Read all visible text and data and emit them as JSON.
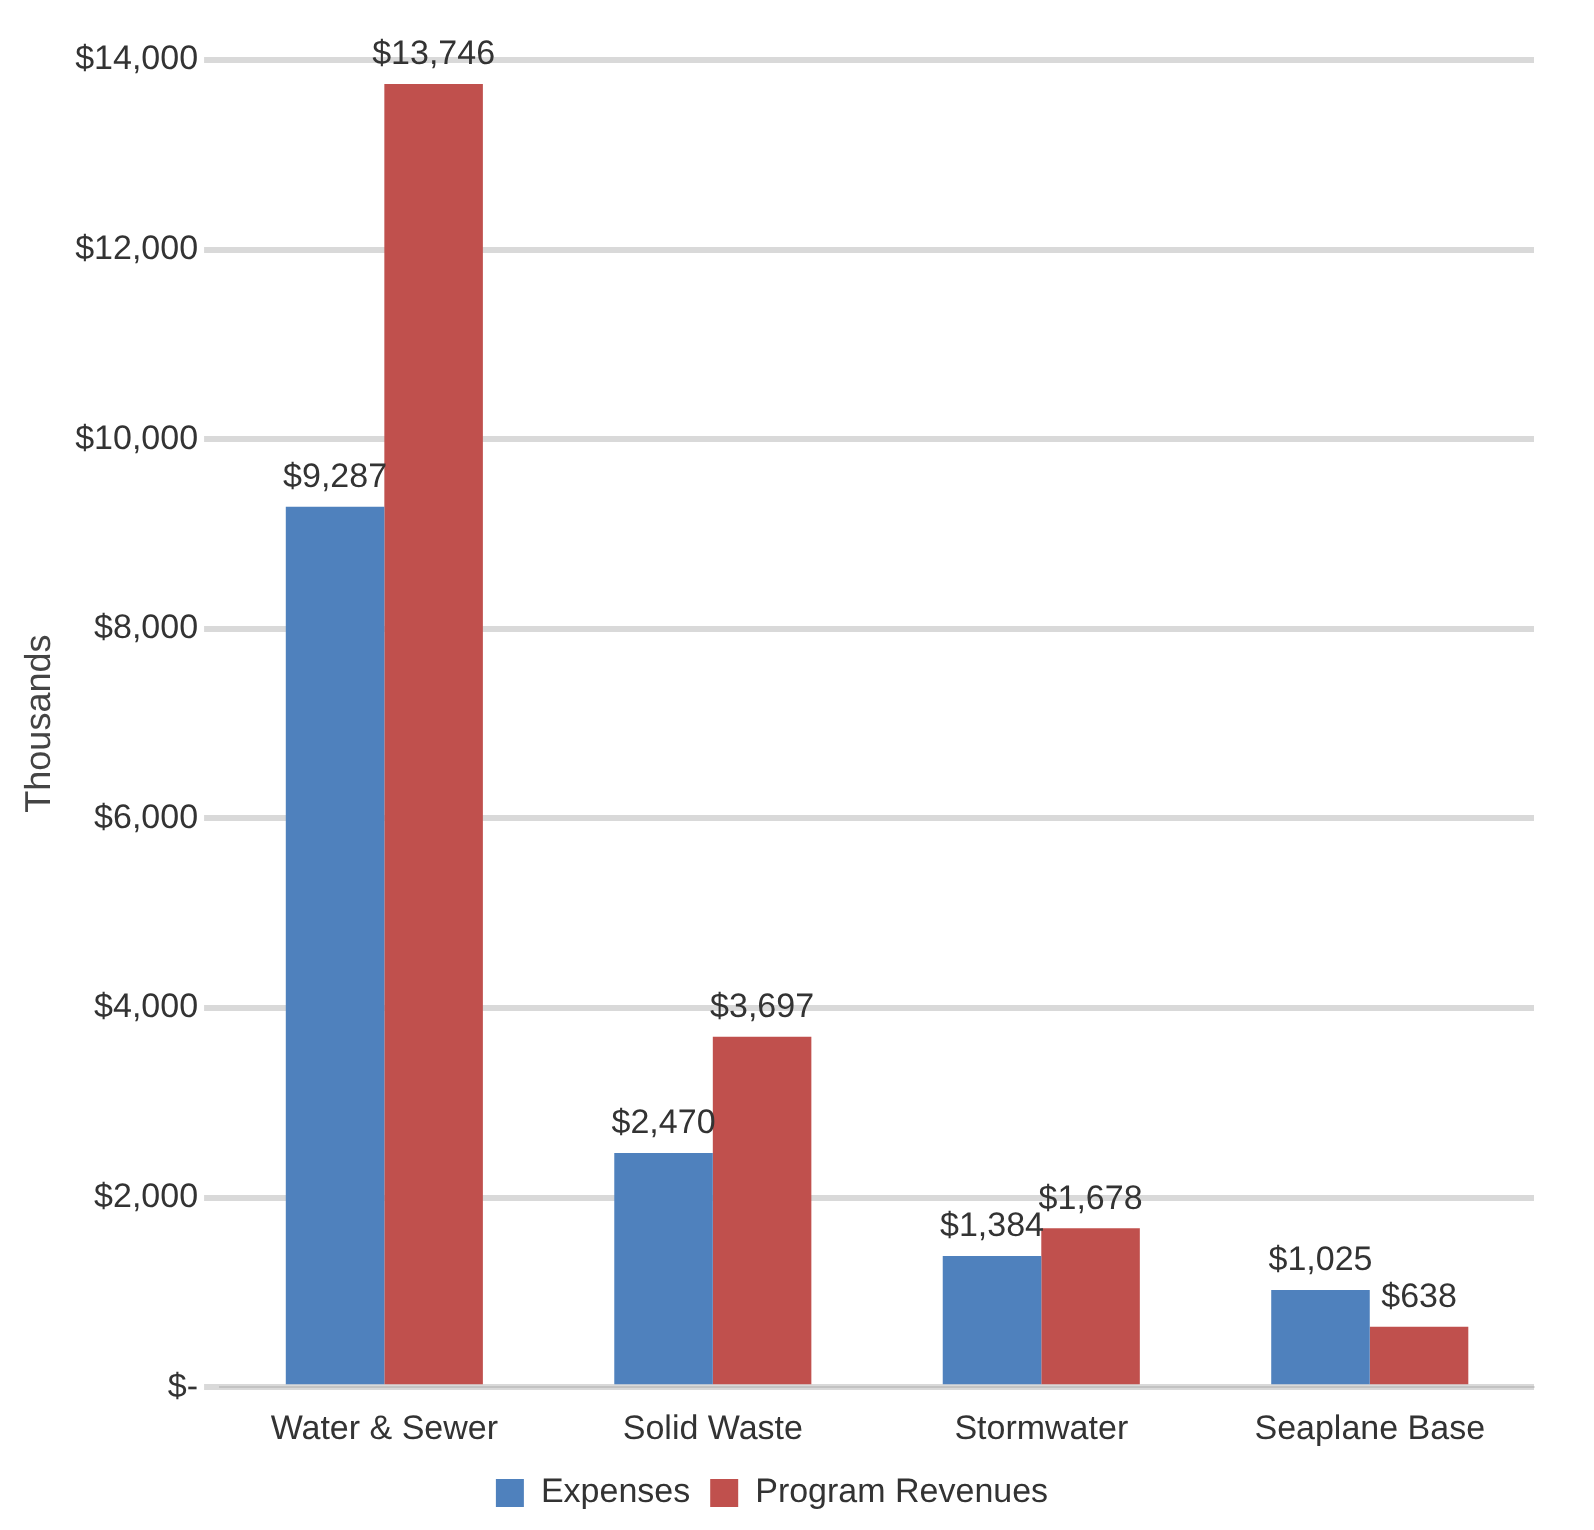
{
  "chart_data": {
    "type": "bar",
    "ylabel": "Thousands",
    "categories": [
      "Water & Sewer",
      "Solid Waste",
      "Stormwater",
      "Seaplane Base"
    ],
    "series": [
      {
        "name": "Expenses",
        "color": "#4f81bd",
        "values": [
          9287,
          2470,
          1384,
          1025
        ],
        "value_labels": [
          "$9,287",
          "$2,470",
          "$1,384",
          "$1,025"
        ]
      },
      {
        "name": "Program Revenues",
        "color": "#c0504d",
        "values": [
          13746,
          3697,
          1678,
          638
        ],
        "value_labels": [
          "$13,746",
          "$3,697",
          "$1,678",
          "$638"
        ]
      }
    ],
    "ylim": [
      0,
      14000
    ],
    "yticks": [
      {
        "value": 0,
        "label": "$-"
      },
      {
        "value": 2000,
        "label": "$2,000"
      },
      {
        "value": 4000,
        "label": "$4,000"
      },
      {
        "value": 6000,
        "label": "$6,000"
      },
      {
        "value": 8000,
        "label": "$8,000"
      },
      {
        "value": 10000,
        "label": "$10,000"
      },
      {
        "value": 12000,
        "label": "$12,000"
      },
      {
        "value": 14000,
        "label": "$14,000"
      }
    ],
    "grid": "y",
    "legend": "bottom"
  }
}
